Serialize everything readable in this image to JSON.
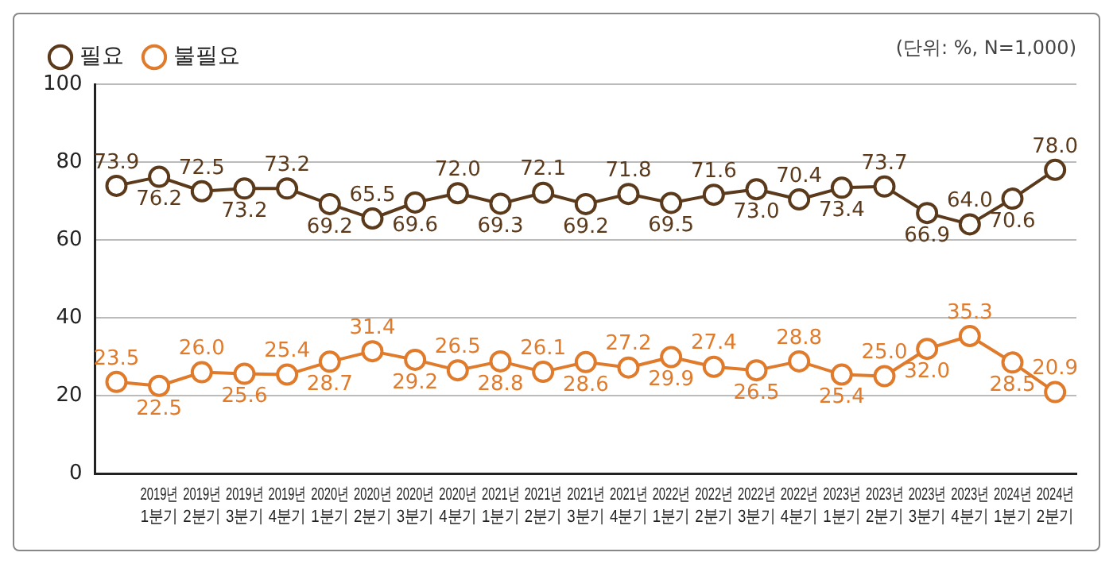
{
  "chart_data": {
    "type": "line",
    "categories": [
      null,
      "2019년 1분기",
      "2019년 2분기",
      "2019년 3분기",
      "2019년 4분기",
      "2020년 1분기",
      "2020년 2분기",
      "2020년 3분기",
      "2020년 4분기",
      "2021년 1분기",
      "2021년 2분기",
      "2021년 3분기",
      "2021년 4분기",
      "2022년 1분기",
      "2022년 2분기",
      "2022년 3분기",
      "2022년 4분기",
      "2023년 1분기",
      "2023년 2분기",
      "2023년 3분기",
      "2023년 4분기",
      "2024년 1분기",
      "2024년 2분기"
    ],
    "series": [
      {
        "name": "필요",
        "color": "#5b3a1c",
        "values": [
          73.9,
          76.2,
          72.5,
          73.2,
          73.2,
          69.2,
          65.5,
          69.6,
          72.0,
          69.3,
          72.1,
          69.2,
          71.8,
          69.5,
          71.6,
          73.0,
          70.4,
          73.4,
          73.7,
          66.9,
          64.0,
          70.6,
          78.0
        ],
        "value_labels": [
          "73.9",
          "76.2",
          "72.5",
          "73.2",
          "73.2",
          "69.2",
          "65.5",
          "69.6",
          "72.0",
          "69.3",
          "72.1",
          "69.2",
          "71.8",
          "69.5",
          "71.6",
          "73.0",
          "70.4",
          "73.4",
          "73.7",
          "66.9",
          "64.0",
          "70.6",
          "78.0"
        ]
      },
      {
        "name": "불필요",
        "color": "#e07b2c",
        "values": [
          23.5,
          22.5,
          26.0,
          25.6,
          25.4,
          28.7,
          31.4,
          29.2,
          26.5,
          28.8,
          26.1,
          28.6,
          27.2,
          29.9,
          27.4,
          26.5,
          28.8,
          25.4,
          25.0,
          32.0,
          35.3,
          28.5,
          20.9
        ],
        "value_labels": [
          "23.5",
          "22.5",
          "26.0",
          "25.6",
          "25.4",
          "28.7",
          "31.4",
          "29.2",
          "26.5",
          "28.8",
          "26.1",
          "28.6",
          "27.2",
          "29.9",
          "27.4",
          "26.5",
          "28.8",
          "25.4",
          "25.0",
          "32.0",
          "35.3",
          "28.5",
          "20.9"
        ]
      }
    ],
    "ylim": [
      0,
      100
    ],
    "yticks": [
      0,
      20,
      40,
      60,
      80,
      100
    ],
    "grid": "y",
    "legend": "top left",
    "marker": "circle",
    "line_style": "solid",
    "annotations": [
      "(단위: %, N=1,000)"
    ]
  }
}
